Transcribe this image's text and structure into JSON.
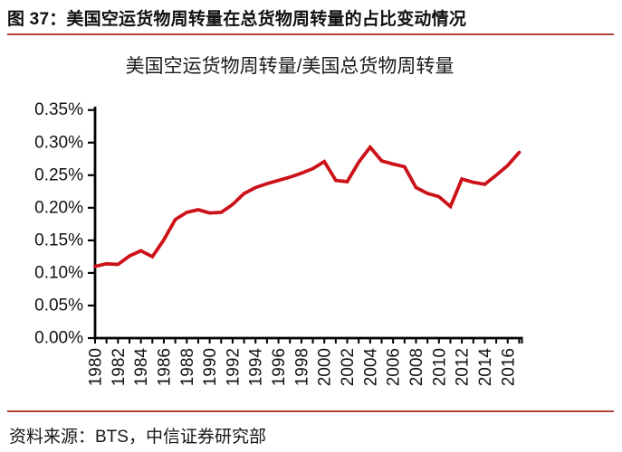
{
  "header": {
    "title": "图 37：美国空运货物周转量在总货物周转量的占比变动情况"
  },
  "chart": {
    "title": "美国空运货物周转量/美国总货物周转量"
  },
  "footer": {
    "source": "资料来源：BTS，中信证券研究部"
  },
  "colors": {
    "line": "#CC1119",
    "rule": "#AE4138",
    "axis": "#000000",
    "text": "#111111"
  },
  "chart_data": {
    "type": "line",
    "title": "美国空运货物周转量/美国总货物周转量",
    "series_name": "美国空运货物周转量/美国总货物周转量 (%)",
    "x": [
      1980,
      1981,
      1982,
      1983,
      1984,
      1985,
      1986,
      1987,
      1988,
      1989,
      1990,
      1991,
      1992,
      1993,
      1994,
      1995,
      1996,
      1997,
      1998,
      1999,
      2000,
      2001,
      2002,
      2003,
      2004,
      2005,
      2006,
      2007,
      2008,
      2009,
      2010,
      2011,
      2012,
      2013,
      2014,
      2015,
      2016,
      2017
    ],
    "values": [
      0.11,
      0.114,
      0.113,
      0.126,
      0.134,
      0.125,
      0.151,
      0.182,
      0.193,
      0.197,
      0.192,
      0.193,
      0.205,
      0.222,
      0.231,
      0.237,
      0.242,
      0.247,
      0.253,
      0.26,
      0.271,
      0.242,
      0.24,
      0.27,
      0.293,
      0.272,
      0.267,
      0.263,
      0.231,
      0.222,
      0.217,
      0.202,
      0.244,
      0.239,
      0.236,
      0.25,
      0.265,
      0.285
    ],
    "ylim": [
      0,
      0.35
    ],
    "ytick_step": 0.05,
    "ytick_labels": [
      "0.00%",
      "0.05%",
      "0.10%",
      "0.15%",
      "0.20%",
      "0.25%",
      "0.30%",
      "0.35%"
    ],
    "xtick_label_step": 2,
    "xtick_labels": [
      "1980",
      "1982",
      "1984",
      "1986",
      "1988",
      "1990",
      "1992",
      "1994",
      "1996",
      "1998",
      "2000",
      "2002",
      "2004",
      "2006",
      "2008",
      "2010",
      "2012",
      "2014",
      "2016"
    ],
    "grid": false,
    "legend": "none",
    "line_color": "#CC1119",
    "unit": "percent"
  }
}
